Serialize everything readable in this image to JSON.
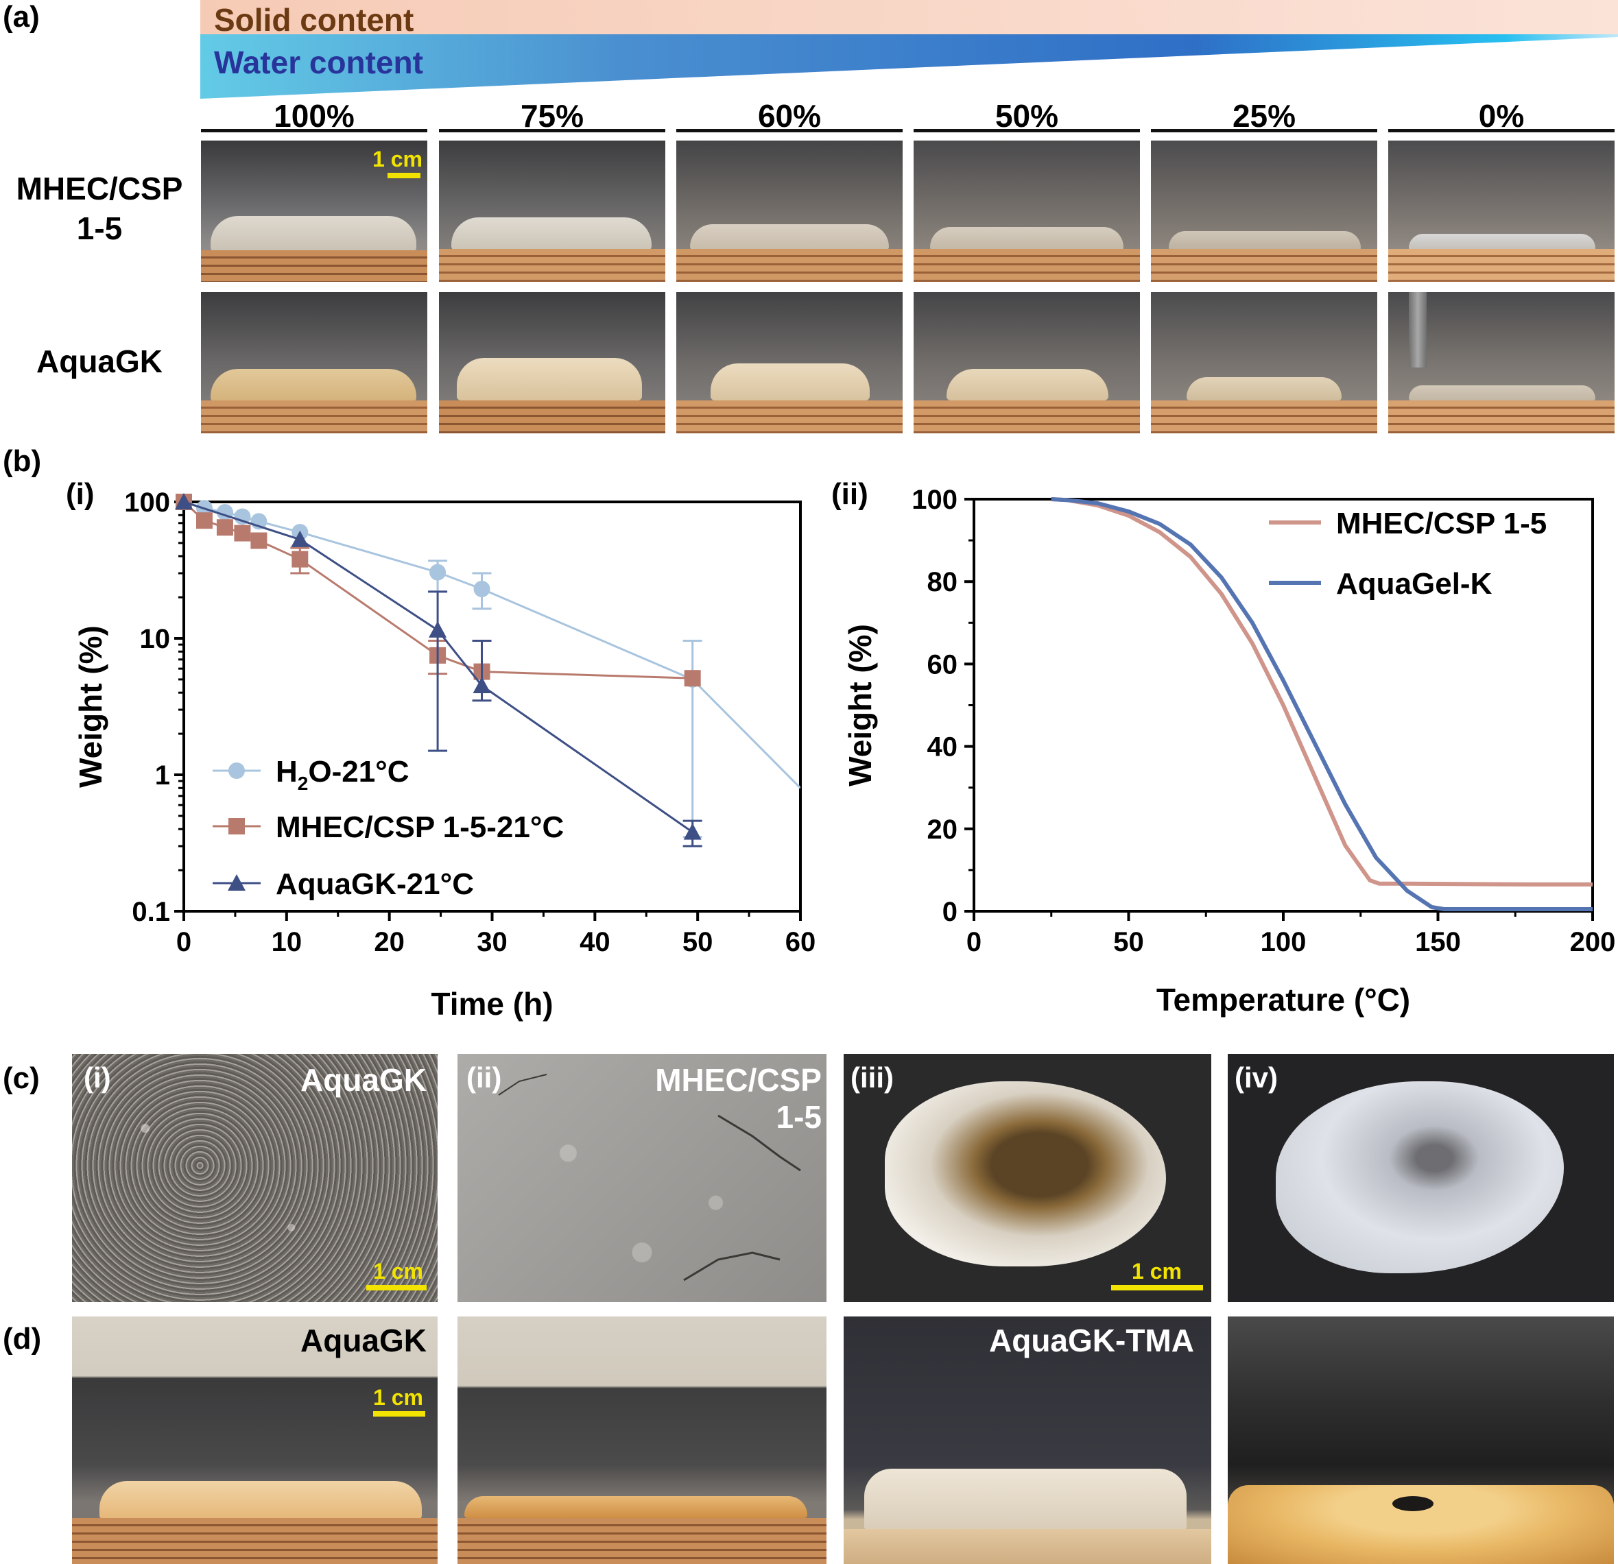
{
  "panel_labels": {
    "a": "(a)",
    "b": "(b)",
    "c": "(c)",
    "d": "(d)"
  },
  "gradient": {
    "solid_label": "Solid content",
    "water_label": "Water content",
    "solid_color": "#f8d1be",
    "water_color_start": "#5fc8e6",
    "water_color_end": "#2f6ac1",
    "solid_text_color": "#6b3a12",
    "water_text_color": "#28349a"
  },
  "percentages": [
    "100%",
    "75%",
    "60%",
    "50%",
    "25%",
    "0%"
  ],
  "rows": {
    "row1_line1": "MHEC/CSP",
    "row1_line2": "1-5",
    "row2": "AquaGK"
  },
  "scalebar_label": "1 cm",
  "panel_b": {
    "i_label": "(i)",
    "ii_label": "(ii)"
  },
  "panel_c": {
    "i": "(i)",
    "ii": "(ii)",
    "iii": "(iii)",
    "iv": "(iv)",
    "i_name": "AquaGK",
    "ii_name_line1": "MHEC/CSP",
    "ii_name_line2": "1-5"
  },
  "panel_d": {
    "left_name": "AquaGK",
    "right_name": "AquaGK-TMA"
  },
  "chart_data": [
    {
      "type": "line",
      "panel": "(b)(i)",
      "xlabel": "Time (h)",
      "ylabel": "Weight (%)",
      "xlim": [
        0,
        60
      ],
      "ylim": [
        0.1,
        100
      ],
      "yscale": "log",
      "xticks": [
        "0",
        "10",
        "20",
        "30",
        "40",
        "50",
        "60"
      ],
      "yticks": [
        "0.1",
        "1",
        "10",
        "100"
      ],
      "legend_position": "bottom-left",
      "series": [
        {
          "name": "H2O-21°C",
          "legend_main": "H",
          "legend_sub": "2",
          "legend_rest": "O-21°C",
          "color": "#a8c4de",
          "marker": "circle",
          "x": [
            0,
            2,
            4,
            5.7,
            7.3,
            11.3,
            24.7,
            29,
            49.5,
            60
          ],
          "y": [
            100,
            90,
            84,
            78,
            72,
            60,
            30.5,
            23,
            5,
            0.8
          ],
          "err_x": [
            24.7,
            29,
            49.5
          ],
          "err_low": [
            22,
            16.5,
            0.35
          ],
          "err_high": [
            37,
            30,
            9.6
          ]
        },
        {
          "name": "MHEC/CSP 1-5-21°C",
          "color": "#b97a6e",
          "marker": "square",
          "x": [
            0,
            2,
            4,
            5.7,
            7.3,
            11.3,
            24.7,
            29,
            49.5
          ],
          "y": [
            100,
            73,
            65,
            59,
            52,
            38,
            7.5,
            5.7,
            5.1
          ],
          "err_x": [
            11.3,
            24.7
          ],
          "err_low": [
            30,
            5.5
          ],
          "err_high": [
            46,
            9.6
          ]
        },
        {
          "name": "AquaGK-21°C",
          "color": "#3e4f86",
          "marker": "triangle",
          "x": [
            0,
            11.3,
            24.7,
            29,
            49.5
          ],
          "y": [
            100,
            53,
            11.5,
            4.5,
            0.38
          ],
          "err_x": [
            24.7,
            29,
            49.5
          ],
          "err_low": [
            1.5,
            3.5,
            0.3
          ],
          "err_high": [
            22,
            9.6,
            0.46
          ]
        }
      ]
    },
    {
      "type": "line",
      "panel": "(b)(ii)",
      "xlabel": "Temperature (°C)",
      "ylabel": "Weight (%)",
      "xlim": [
        0,
        200
      ],
      "ylim": [
        0,
        100
      ],
      "xticks": [
        "0",
        "50",
        "100",
        "150",
        "200"
      ],
      "yticks": [
        "0",
        "20",
        "40",
        "60",
        "80",
        "100"
      ],
      "legend_position": "top-right",
      "series": [
        {
          "name": "MHEC/CSP 1-5",
          "color": "#cf948a",
          "x": [
            25,
            30,
            40,
            50,
            60,
            70,
            80,
            90,
            100,
            110,
            120,
            128,
            131,
            140,
            160,
            180,
            200
          ],
          "y": [
            100,
            99.8,
            98.5,
            96,
            92,
            86,
            77,
            65,
            50,
            33,
            16,
            7.5,
            6.7,
            6.7,
            6.6,
            6.5,
            6.5
          ]
        },
        {
          "name": "AquaGel-K",
          "color": "#5574b2",
          "x": [
            25,
            30,
            40,
            50,
            60,
            70,
            80,
            90,
            100,
            110,
            120,
            130,
            140,
            148,
            152,
            160,
            180,
            200
          ],
          "y": [
            100,
            99.8,
            99,
            97,
            94,
            89,
            81,
            70,
            56,
            41,
            26,
            13,
            5,
            1,
            0.5,
            0.5,
            0.5,
            0.5
          ]
        }
      ]
    }
  ]
}
